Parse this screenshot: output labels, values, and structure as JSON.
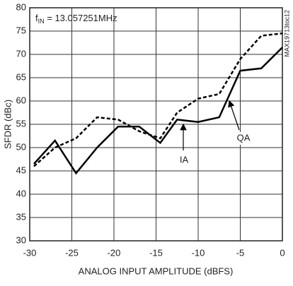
{
  "chart_data": {
    "type": "line",
    "xlabel": "ANALOG INPUT AMPLITUDE (dBFS)",
    "ylabel": "SFDR (dBc)",
    "x": [
      -29.5,
      -27,
      -24.5,
      -22,
      -19.5,
      -17,
      -14.5,
      -12.5,
      -10,
      -7.5,
      -5,
      -2.5,
      0
    ],
    "series": [
      {
        "name": "IA",
        "color": "#000000",
        "style": "solid",
        "values": [
          46.5,
          51.5,
          44.5,
          50,
          54.5,
          54.5,
          51,
          56,
          55.5,
          56.5,
          66.5,
          67,
          71.5
        ]
      },
      {
        "name": "QA",
        "color": "#000000",
        "style": "dashed",
        "values": [
          46,
          50,
          52,
          56.5,
          56,
          53.5,
          52,
          57.5,
          60.5,
          61.5,
          69,
          74,
          74.5
        ]
      }
    ],
    "xlim": [
      -30,
      0
    ],
    "xticks": [
      -30,
      -25,
      -20,
      -15,
      -10,
      -5,
      0
    ],
    "ylim": [
      30,
      80
    ],
    "yticks": [
      30,
      35,
      40,
      45,
      50,
      55,
      60,
      65,
      70,
      75,
      80
    ],
    "grid": true,
    "condition": {
      "symbol": "f",
      "subscript": "IN",
      "text": " = 13.057251MHz"
    },
    "figure_id": "MAX19713toc12"
  }
}
